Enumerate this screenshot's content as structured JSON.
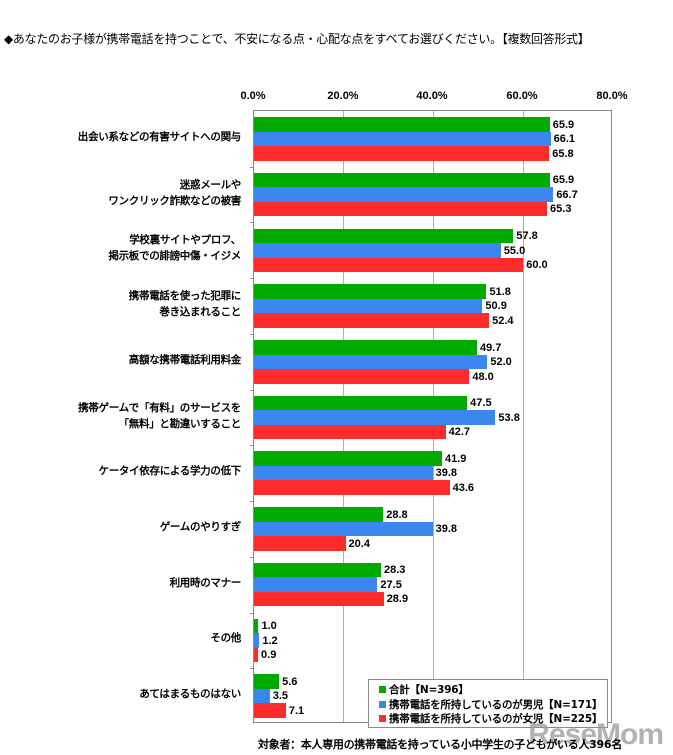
{
  "header": {
    "title": "◆あなたのお子様が携帯電話を持つことで、不安になる点・心配な点をすべてお選びください。【複数回答形式】"
  },
  "axis": {
    "ticks": [
      "0.0%",
      "20.0%",
      "40.0%",
      "60.0%",
      "80.0%"
    ]
  },
  "legend": {
    "items": [
      {
        "label": "合計【N=396】",
        "color": "#00aa00"
      },
      {
        "label": "携帯電話を所持しているのが男児【N=171】",
        "color": "#3b87f0"
      },
      {
        "label": "携帯電話を所持しているのが女児【N=225】",
        "color": "#ff2b2b"
      }
    ]
  },
  "footer": {
    "note": "対象者：本人専用の携帯電話を持っている小中学生の子どもがいる人396名"
  },
  "watermark": {
    "text": "ReseMom"
  },
  "chart_data": {
    "type": "bar",
    "orientation": "horizontal",
    "title": "◆あなたのお子様が携帯電話を持つことで、不安になる点・心配な点をすべてお選びください。【複数回答形式】",
    "xlabel": "",
    "ylabel": "",
    "xlim": [
      0,
      80
    ],
    "x_ticks": [
      "0.0%",
      "20.0%",
      "40.0%",
      "60.0%",
      "80.0%"
    ],
    "grid": true,
    "legend_position": "bottom-right inside",
    "categories": [
      "出会い系などの有害サイトへの関与",
      "迷惑メールやワンクリック詐欺などの被害",
      "学校裏サイトやプロフ、掲示板での誹謗中傷・イジメ",
      "携帯電話を使った犯罪に巻き込まれること",
      "高額な携帯電話利用料金",
      "携帯ゲームで「有料」のサービスを「無料」と勘違いすること",
      "ケータイ依存による学力の低下",
      "ゲームのやりすぎ",
      "利用時のマナー",
      "その他",
      "あてはまるものはない"
    ],
    "category_lines": [
      [
        "出会い系などの有害サイトへの関与"
      ],
      [
        "迷惑メールや",
        "ワンクリック詐欺などの被害"
      ],
      [
        "学校裏サイトやプロフ、",
        "掲示板での誹謗中傷・イジメ"
      ],
      [
        "携帯電話を使った犯罪に",
        "巻き込まれること"
      ],
      [
        "高額な携帯電話利用料金"
      ],
      [
        "携帯ゲームで「有料」のサービスを",
        "「無料」と勘違いすること"
      ],
      [
        "ケータイ依存による学力の低下"
      ],
      [
        "ゲームのやりすぎ"
      ],
      [
        "利用時のマナー"
      ],
      [
        "その他"
      ],
      [
        "あてはまるものはない"
      ]
    ],
    "series": [
      {
        "name": "合計【N=396】",
        "color": "#00aa00",
        "values": [
          65.9,
          65.9,
          57.8,
          51.8,
          49.7,
          47.5,
          41.9,
          28.8,
          28.3,
          1.0,
          5.6
        ],
        "labels": [
          "65.9",
          "65.9",
          "57.8",
          "51.8",
          "49.7",
          "47.5",
          "41.9",
          "28.8",
          "28.3",
          "1.0",
          "5.6"
        ]
      },
      {
        "name": "携帯電話を所持しているのが男児【N=171】",
        "color": "#3b87f0",
        "values": [
          66.1,
          66.7,
          55.0,
          50.9,
          52.0,
          53.8,
          39.8,
          39.8,
          27.5,
          1.2,
          3.5
        ],
        "labels": [
          "66.1",
          "66.7",
          "55.0",
          "50.9",
          "52.0",
          "53.8",
          "39.8",
          "39.8",
          "27.5",
          "1.2",
          "3.5"
        ]
      },
      {
        "name": "携帯電話を所持しているのが女児【N=225】",
        "color": "#ff2b2b",
        "values": [
          65.8,
          65.3,
          60.0,
          52.4,
          48.0,
          42.7,
          43.6,
          20.4,
          28.9,
          0.9,
          7.1
        ],
        "labels": [
          "65.8",
          "65.3",
          "60.0",
          "52.4",
          "48.0",
          "42.7",
          "43.6",
          "20.4",
          "28.9",
          "0.9",
          "7.1"
        ]
      }
    ]
  }
}
